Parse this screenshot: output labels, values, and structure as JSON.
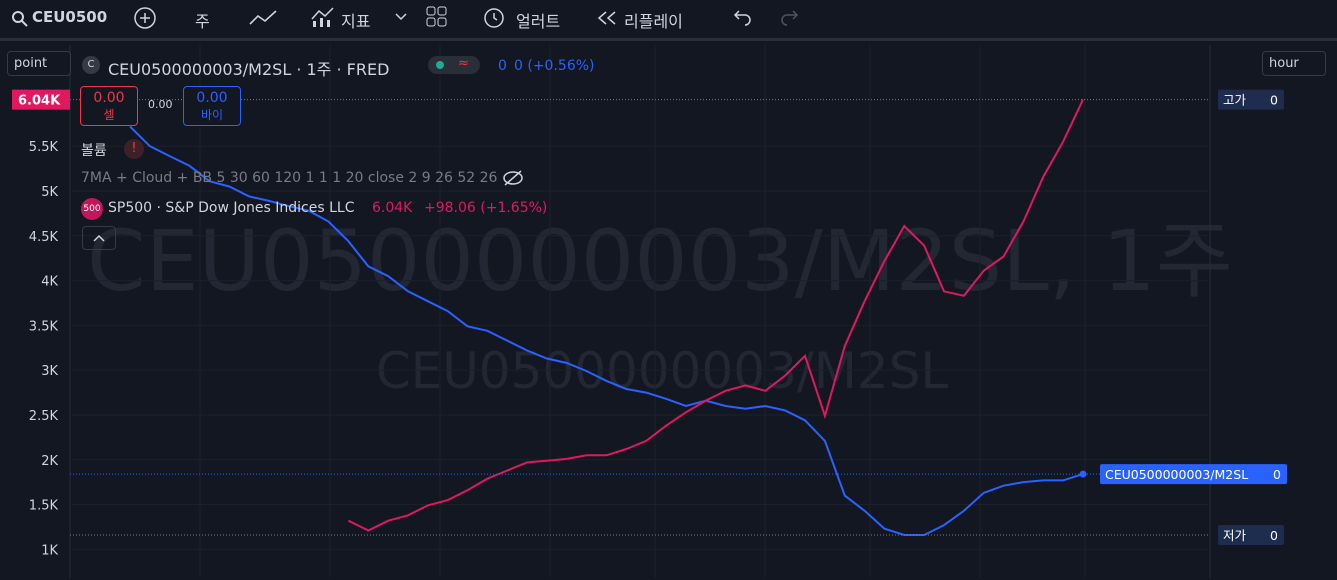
{
  "toolbar": {
    "symbol": "CEU0500",
    "interval": "주",
    "indicators": "지표",
    "alerts": "얼러트",
    "replay": "리플레이"
  },
  "scale_buttons": {
    "left": "point",
    "right": "hour"
  },
  "legend": {
    "symbol_title": "CEU0500000003/M2SL · 1주 · FRED",
    "last": "0",
    "change": "0 (+0.56%)",
    "sell": {
      "price": "0.00",
      "label": "셀"
    },
    "spread": "0.00",
    "buy": {
      "price": "0.00",
      "label": "바이"
    },
    "volume": "볼륨",
    "indicators": "7MA + Cloud + BB 5 30 60 120 1 1 1 20 close 2 9 26 52 26",
    "compare": {
      "badge": "500",
      "name": "SP500 · S&P Dow Jones Indices LLC",
      "value": "6.04K",
      "change": "+98.06 (+1.65%)"
    }
  },
  "watermark": {
    "main": "CEU0500000003/M2SL, 1주",
    "sub": "CEU0500000003/M2SL"
  },
  "chart_data": {
    "type": "line",
    "ylim": [
      680,
      6630
    ],
    "yticks": [
      {
        "value": 1000,
        "label": "1K"
      },
      {
        "value": 1500,
        "label": "1.5K"
      },
      {
        "value": 2000,
        "label": "2K"
      },
      {
        "value": 2500,
        "label": "2.5K"
      },
      {
        "value": 3000,
        "label": "3K"
      },
      {
        "value": 3500,
        "label": "3.5K"
      },
      {
        "value": 4000,
        "label": "4K"
      },
      {
        "value": 4500,
        "label": "4.5K"
      },
      {
        "value": 5000,
        "label": "5K"
      },
      {
        "value": 5500,
        "label": "5.5K"
      }
    ],
    "series": [
      {
        "name": "CEU0500000003/M2SL",
        "color": "#2962ff",
        "values": [
          5720,
          5500,
          5390,
          5280,
          5110,
          5050,
          4940,
          4890,
          4830,
          4780,
          4660,
          4440,
          4160,
          4050,
          3880,
          3770,
          3660,
          3490,
          3440,
          3330,
          3220,
          3130,
          3080,
          2990,
          2880,
          2790,
          2750,
          2680,
          2600,
          2660,
          2600,
          2570,
          2600,
          2550,
          2440,
          2210,
          1600,
          1430,
          1230,
          1160,
          1160,
          1270,
          1430,
          1630,
          1710,
          1750,
          1770,
          1770,
          1840
        ]
      },
      {
        "name": "SP500",
        "color": "#e0185f",
        "values": [
          null,
          null,
          null,
          null,
          null,
          null,
          null,
          null,
          null,
          null,
          null,
          1320,
          1210,
          1320,
          1380,
          1490,
          1550,
          1660,
          1790,
          1880,
          1970,
          1990,
          2010,
          2050,
          2050,
          2120,
          2210,
          2380,
          2530,
          2660,
          2770,
          2830,
          2770,
          2940,
          3160,
          2490,
          3270,
          3770,
          4220,
          4610,
          4390,
          3880,
          3830,
          4110,
          4270,
          4660,
          5160,
          5550,
          6020
        ],
        "last_label": "6.04K"
      }
    ],
    "price_tags": [
      {
        "label": "고가",
        "value": 0
      },
      {
        "label": "CEU0500000003/M2SL",
        "value": 0
      },
      {
        "label": "저가",
        "value": 0
      }
    ]
  }
}
